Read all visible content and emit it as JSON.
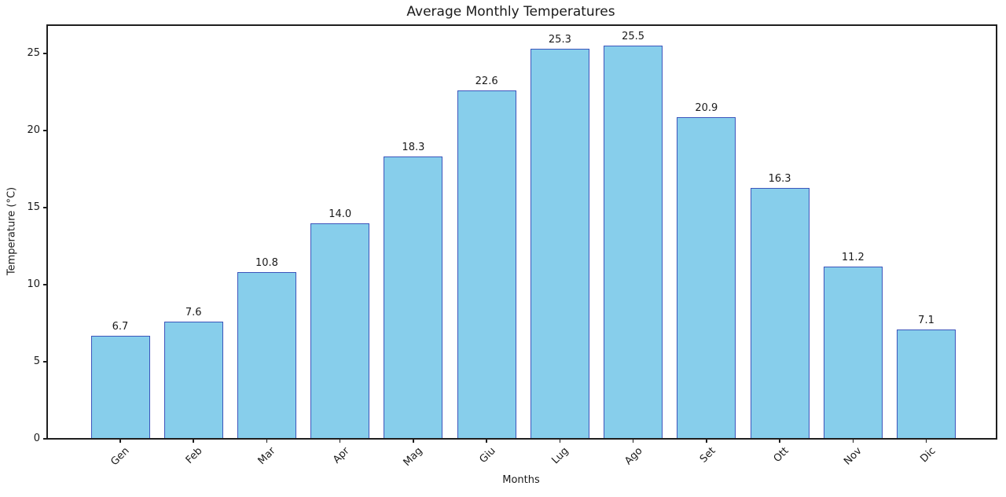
{
  "chart_data": {
    "type": "bar",
    "title": "Average Monthly Temperatures",
    "xlabel": "Months",
    "ylabel": "Temperature (°C)",
    "categories": [
      "Gen",
      "Feb",
      "Mar",
      "Apr",
      "Mag",
      "Giu",
      "Lug",
      "Ago",
      "Set",
      "Ott",
      "Nov",
      "Dic"
    ],
    "values": [
      6.7,
      7.6,
      10.8,
      14.0,
      18.3,
      22.6,
      25.3,
      25.5,
      20.9,
      16.3,
      11.2,
      7.1
    ],
    "value_label_decimals": 1,
    "yticks": [
      0,
      5,
      10,
      15,
      20,
      25
    ],
    "ylim": [
      0,
      26.9
    ],
    "xtick_rotation_deg": 45,
    "grid": false,
    "legend": null,
    "bar_fill_color": "#87CEEB",
    "bar_edge_color": "#3C55BB",
    "axis_color": "#1f1f1f",
    "text_color": "#1a1a1a",
    "background_color": "#ffffff"
  }
}
